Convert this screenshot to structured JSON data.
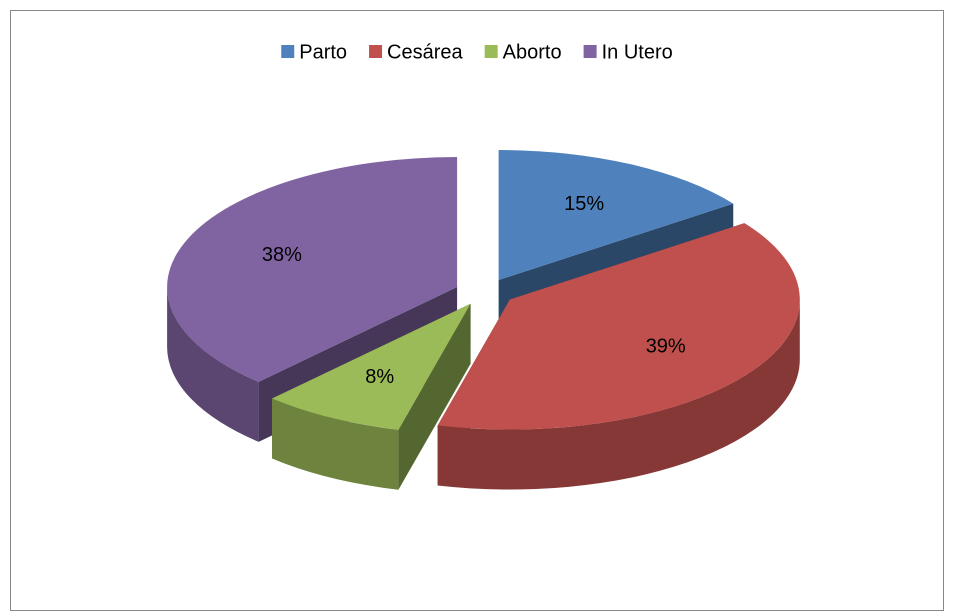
{
  "chart_data": {
    "type": "pie",
    "categories": [
      "Parto",
      "Cesárea",
      "Aborto",
      "In Utero"
    ],
    "values": [
      15,
      39,
      8,
      38
    ],
    "value_labels": [
      "15%",
      "39%",
      "8%",
      "38%"
    ],
    "colors": [
      "#4f81bd",
      "#c0504d",
      "#9bbb59",
      "#8064a2"
    ],
    "legend": "top"
  }
}
